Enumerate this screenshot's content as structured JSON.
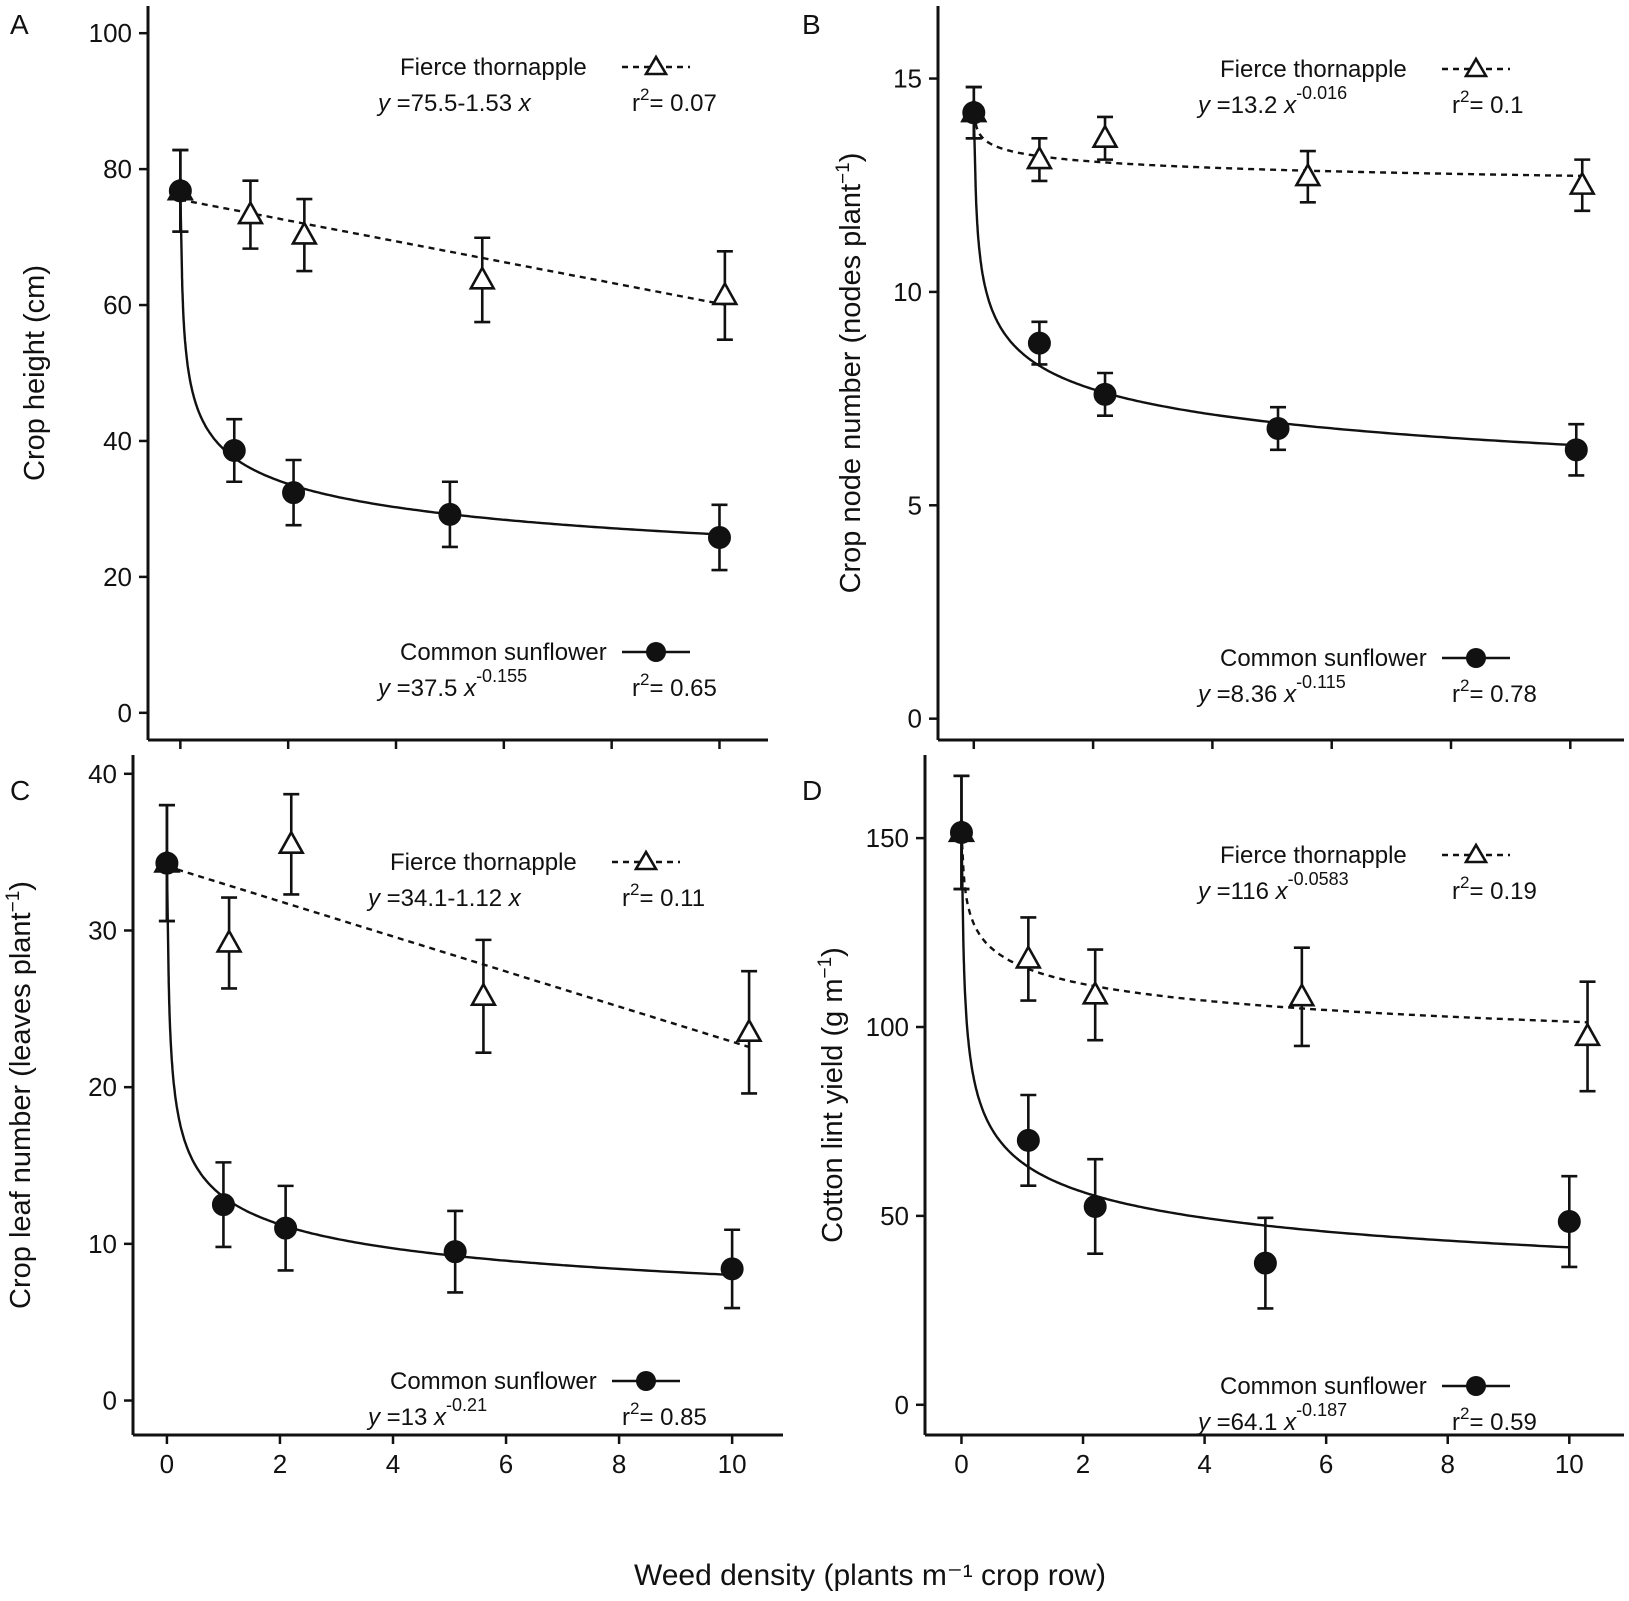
{
  "xlabel_global": "Weed density (plants m⁻¹ crop row)",
  "chart_data": [
    {
      "type": "scatter",
      "panel_label": "A",
      "ylabel": "Crop height (cm)",
      "xlabel": "",
      "xlim": [
        -0.6,
        10.9
      ],
      "ylim": [
        -4,
        104
      ],
      "xticks": [
        0,
        2,
        4,
        6,
        8,
        10
      ],
      "yticks": [
        0,
        20,
        40,
        60,
        80,
        100
      ],
      "show_x_ticklabels": false,
      "grid": false,
      "series": [
        {
          "name": "Fierce thornapple",
          "marker": "triangle-open",
          "line": "dashed",
          "x": [
            0.0,
            1.3,
            2.3,
            5.6,
            10.1
          ],
          "y": [
            76.8,
            73.3,
            70.3,
            63.7,
            61.4
          ],
          "err": [
            6.0,
            5.0,
            5.3,
            6.2,
            6.5
          ],
          "fit": {
            "form": "linear",
            "a": 75.5,
            "b": -1.53
          },
          "equation": {
            "prefix": "y",
            "mid": " =75.5-1.53 ",
            "var": "x",
            "exp": ""
          },
          "r2": "= 0.07"
        },
        {
          "name": "Common sunflower",
          "marker": "circle-filled",
          "line": "solid",
          "x": [
            0.0,
            1.0,
            2.1,
            5.0,
            10.0
          ],
          "y": [
            76.8,
            38.6,
            32.4,
            29.2,
            25.8
          ],
          "err": [
            6.0,
            4.6,
            4.8,
            4.8,
            4.8
          ],
          "fit": {
            "form": "power",
            "a": 37.5,
            "b": -0.155
          },
          "equation": {
            "prefix": "y",
            "mid": " =37.5 ",
            "var": "x",
            "exp": "-0.155"
          },
          "r2": "= 0.65"
        }
      ]
    },
    {
      "type": "scatter",
      "panel_label": "B",
      "ylabel": "Crop node number (nodes plant",
      "ylabel_sup": "−1",
      "ylabel_tail": ")",
      "xlabel": "",
      "xlim": [
        -0.6,
        10.9
      ],
      "ylim": [
        -0.5,
        16.7
      ],
      "xticks": [
        0,
        2,
        4,
        6,
        8,
        10
      ],
      "yticks": [
        0,
        5,
        10,
        15
      ],
      "show_x_ticklabels": false,
      "grid": false,
      "series": [
        {
          "name": "Fierce thornapple",
          "marker": "triangle-open",
          "line": "dashed",
          "x": [
            0.0,
            1.1,
            2.2,
            5.6,
            10.2
          ],
          "y": [
            14.2,
            13.1,
            13.6,
            12.7,
            12.5
          ],
          "err": [
            0.6,
            0.5,
            0.5,
            0.6,
            0.6
          ],
          "fit": {
            "form": "power",
            "a": 13.2,
            "b": -0.016
          },
          "equation": {
            "prefix": "y",
            "mid": " =13.2 ",
            "var": "x",
            "exp": "-0.016"
          },
          "r2": "= 0.1"
        },
        {
          "name": "Common sunflower",
          "marker": "circle-filled",
          "line": "solid",
          "x": [
            0.0,
            1.1,
            2.2,
            5.1,
            10.1
          ],
          "y": [
            14.2,
            8.8,
            7.6,
            6.8,
            6.3
          ],
          "err": [
            0.6,
            0.5,
            0.5,
            0.5,
            0.6
          ],
          "fit": {
            "form": "power",
            "a": 8.36,
            "b": -0.115
          },
          "equation": {
            "prefix": "y",
            "mid": " =8.36 ",
            "var": "x",
            "exp": "-0.115"
          },
          "r2": "= 0.78"
        }
      ]
    },
    {
      "type": "scatter",
      "panel_label": "C",
      "ylabel": "Crop leaf number (leaves plant",
      "ylabel_sup": "−1",
      "ylabel_tail": ")",
      "xlabel": "",
      "xlim": [
        -0.6,
        10.9
      ],
      "ylim": [
        -2.2,
        41.2
      ],
      "xticks": [
        0,
        2,
        4,
        6,
        8,
        10
      ],
      "yticks": [
        0,
        10,
        20,
        30,
        40
      ],
      "show_x_ticklabels": true,
      "grid": false,
      "series": [
        {
          "name": "Fierce thornapple",
          "marker": "triangle-open",
          "line": "dashed",
          "x": [
            0.0,
            1.1,
            2.2,
            5.6,
            10.3
          ],
          "y": [
            34.3,
            29.2,
            35.5,
            25.8,
            23.5
          ],
          "err": [
            3.7,
            2.9,
            3.2,
            3.6,
            3.9
          ],
          "fit": {
            "form": "linear",
            "a": 34.1,
            "b": -1.12
          },
          "equation": {
            "prefix": "y",
            "mid": " =34.1-1.12 ",
            "var": "x",
            "exp": ""
          },
          "r2": "= 0.11"
        },
        {
          "name": "Common sunflower",
          "marker": "circle-filled",
          "line": "solid",
          "x": [
            0.0,
            1.0,
            2.1,
            5.1,
            10.0
          ],
          "y": [
            34.3,
            12.5,
            11.0,
            9.5,
            8.4
          ],
          "err": [
            3.7,
            2.7,
            2.7,
            2.6,
            2.5
          ],
          "fit": {
            "form": "power",
            "a": 13,
            "b": -0.21
          },
          "equation": {
            "prefix": "y",
            "mid": " =13 ",
            "var": "x",
            "exp": "-0.21"
          },
          "r2": "= 0.85"
        }
      ]
    },
    {
      "type": "scatter",
      "panel_label": "D",
      "ylabel": "Cotton lint yield (g m",
      "ylabel_sup": "−1",
      "ylabel_tail": ")",
      "xlabel": "",
      "xlim": [
        -0.6,
        10.9
      ],
      "ylim": [
        -8,
        172
      ],
      "xticks": [
        0,
        2,
        4,
        6,
        8,
        10
      ],
      "yticks": [
        0,
        50,
        100,
        150
      ],
      "show_x_ticklabels": true,
      "grid": false,
      "series": [
        {
          "name": "Fierce thornapple",
          "marker": "triangle-open",
          "line": "dashed",
          "x": [
            0.0,
            1.1,
            2.2,
            5.6,
            10.3
          ],
          "y": [
            151.5,
            118.0,
            108.5,
            108.0,
            97.5
          ],
          "err": [
            15.0,
            11.0,
            12.0,
            13.0,
            14.5
          ],
          "fit": {
            "form": "power",
            "a": 116,
            "b": -0.0583
          },
          "equation": {
            "prefix": "y",
            "mid": " =116 ",
            "var": "x",
            "exp": "-0.0583"
          },
          "r2": "= 0.19"
        },
        {
          "name": "Common sunflower",
          "marker": "circle-filled",
          "line": "solid",
          "x": [
            0.0,
            1.1,
            2.2,
            5.0,
            10.0
          ],
          "y": [
            151.5,
            70.0,
            52.5,
            37.5,
            48.5
          ],
          "err": [
            15.0,
            12.0,
            12.5,
            12.0,
            12.0
          ],
          "fit": {
            "form": "power",
            "a": 64.1,
            "b": -0.187
          },
          "equation": {
            "prefix": "y",
            "mid": " =64.1 ",
            "var": "x",
            "exp": "-0.187"
          },
          "r2": "= 0.59"
        }
      ]
    }
  ]
}
